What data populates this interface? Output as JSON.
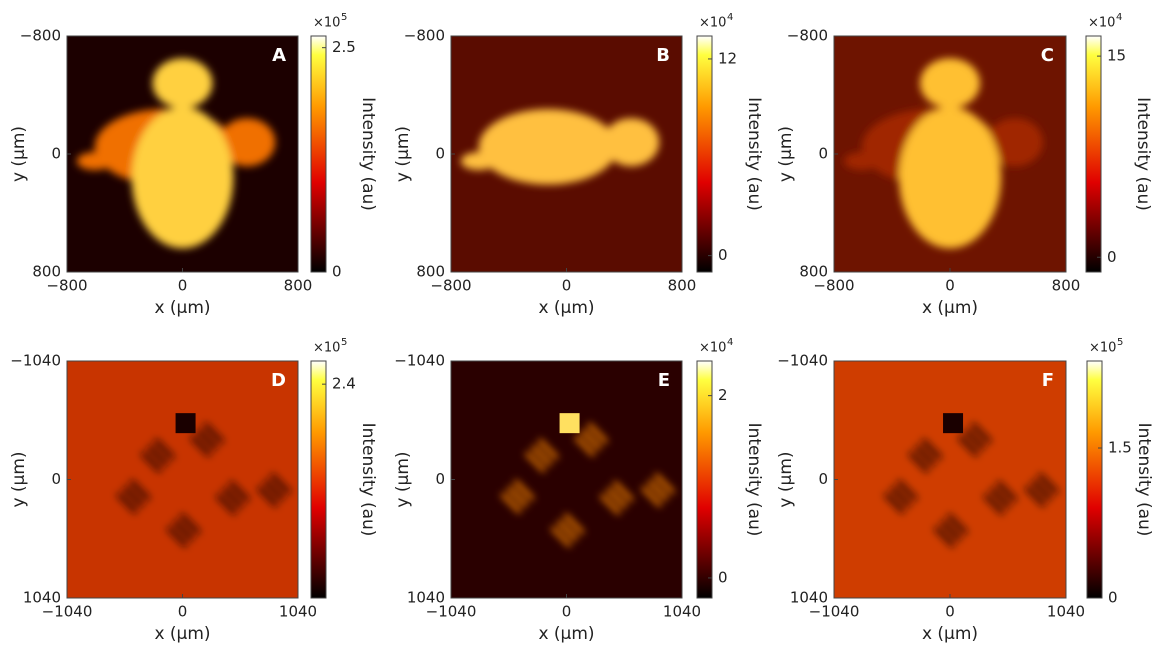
{
  "chart_data": [
    {
      "type": "image",
      "label": "A",
      "xlabel": "x (μm)",
      "ylabel": "y (μm)",
      "xlim": [
        -800,
        800
      ],
      "ylim": [
        -800,
        800
      ],
      "xticks": [
        {
          "value": -800,
          "label": "−800"
        },
        0,
        800
      ],
      "yticks": [
        {
          "value": -800,
          "label": "−800"
        },
        0,
        800
      ],
      "colorbar_label": "Intensity (au)",
      "colorbar_multiplier": "×10",
      "colorbar_exponent": "5",
      "clim": [
        0,
        2.63
      ],
      "cticks": [
        0,
        2.5
      ]
    },
    {
      "type": "image",
      "label": "B",
      "xlabel": "x (μm)",
      "ylabel": "y (μm)",
      "xlim": [
        -800,
        800
      ],
      "ylim": [
        -800,
        800
      ],
      "xticks": [
        {
          "value": -800,
          "label": "−800"
        },
        0,
        800
      ],
      "yticks": [
        {
          "value": -800,
          "label": "−800"
        },
        0,
        800
      ],
      "colorbar_label": "Intensity (au)",
      "colorbar_multiplier": "×10",
      "colorbar_exponent": "4",
      "clim": [
        -1.0,
        13.4
      ],
      "cticks": [
        0,
        12
      ]
    },
    {
      "type": "image",
      "label": "C",
      "xlabel": "x (μm)",
      "ylabel": "y (μm)",
      "xlim": [
        -800,
        800
      ],
      "ylim": [
        -800,
        800
      ],
      "xticks": [
        {
          "value": -800,
          "label": "−800"
        },
        0,
        800
      ],
      "yticks": [
        {
          "value": -800,
          "label": "−800"
        },
        0,
        800
      ],
      "colorbar_label": "Intensity (au)",
      "colorbar_multiplier": "×10",
      "colorbar_exponent": "4",
      "clim": [
        -1.1,
        16.5
      ],
      "cticks": [
        0,
        15
      ]
    },
    {
      "type": "image",
      "label": "D",
      "xlabel": "x (μm)",
      "ylabel": "y (μm)",
      "xlim": [
        -1040,
        1040
      ],
      "ylim": [
        -1040,
        1040
      ],
      "xticks": [
        {
          "value": -1040,
          "label": "−1040"
        },
        0,
        1040
      ],
      "yticks": [
        {
          "value": -1040,
          "label": "−1040"
        },
        0,
        1040
      ],
      "colorbar_label": "Intensity (au)",
      "colorbar_multiplier": "×10",
      "colorbar_exponent": "5",
      "clim": [
        0,
        2.66
      ],
      "cticks": [
        2.4
      ]
    },
    {
      "type": "image",
      "label": "E",
      "xlabel": "x (μm)",
      "ylabel": "y (μm)",
      "xlim": [
        -1040,
        1040
      ],
      "ylim": [
        -1040,
        1040
      ],
      "xticks": [
        {
          "value": -1040,
          "label": "−1040"
        },
        0,
        1040
      ],
      "yticks": [
        {
          "value": -1040,
          "label": "−1040"
        },
        0,
        1040
      ],
      "colorbar_label": "Intensity (au)",
      "colorbar_multiplier": "×10",
      "colorbar_exponent": "4",
      "clim": [
        -0.22,
        2.38
      ],
      "cticks": [
        0,
        2
      ]
    },
    {
      "type": "image",
      "label": "F",
      "xlabel": "x (μm)",
      "ylabel": "y (μm)",
      "xlim": [
        -1040,
        1040
      ],
      "ylim": [
        -1040,
        1040
      ],
      "xticks": [
        {
          "value": -1040,
          "label": "−1040"
        },
        0,
        1040
      ],
      "yticks": [
        {
          "value": -1040,
          "label": "−1040"
        },
        0,
        1040
      ],
      "colorbar_label": "Intensity (au)",
      "colorbar_multiplier": "×10",
      "colorbar_exponent": "5",
      "clim": [
        0,
        2.37
      ],
      "cticks": [
        0,
        1.5
      ]
    }
  ]
}
